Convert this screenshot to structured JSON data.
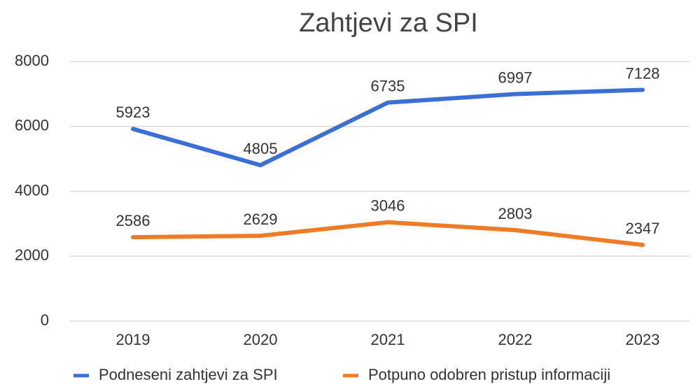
{
  "chart_data": {
    "type": "line",
    "title": "Zahtjevi za SPI",
    "categories": [
      "2019",
      "2020",
      "2021",
      "2022",
      "2023"
    ],
    "series": [
      {
        "name": "Podneseni zahtjevi za SPI",
        "color": "#3b6fd6",
        "values": [
          5923,
          4805,
          6735,
          6997,
          7128
        ]
      },
      {
        "name": "Potpuno odobren pristup informaciji",
        "color": "#f07b27",
        "values": [
          2586,
          2629,
          3046,
          2803,
          2347
        ]
      }
    ],
    "ylim": [
      0,
      8000
    ],
    "yticks": [
      0,
      2000,
      4000,
      6000,
      8000
    ],
    "grid": true,
    "legend": "bottom"
  }
}
